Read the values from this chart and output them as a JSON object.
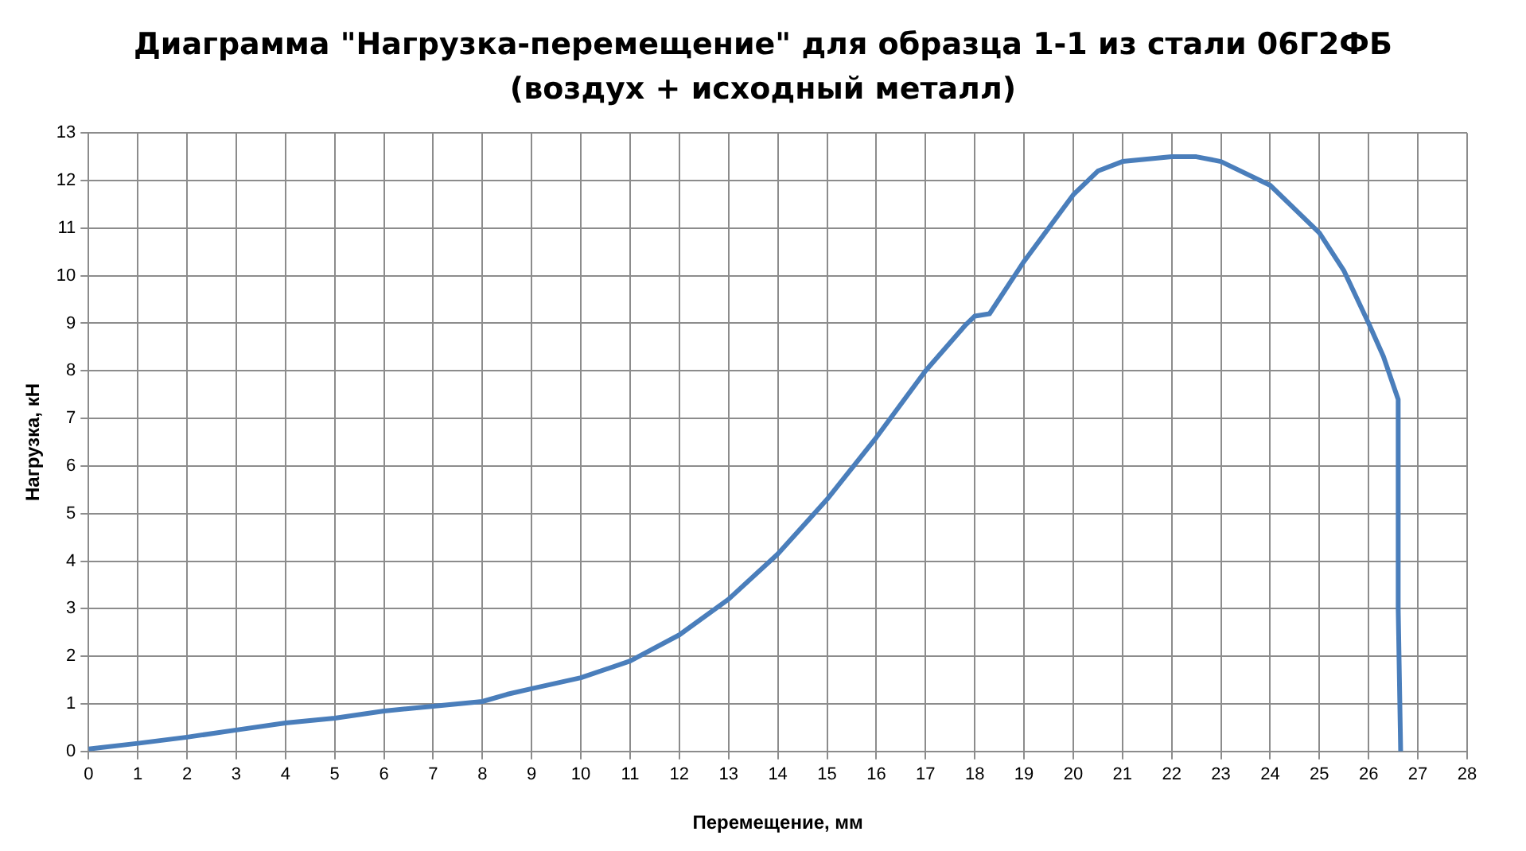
{
  "chart_data": {
    "type": "line",
    "title": "Диаграмма \"Нагрузка-перемещение\" для образца 1-1 из стали 06Г2ФБ\n(воздух + исходный металл)",
    "xlabel": "Перемещение, мм",
    "ylabel": "Нагрузка, кН",
    "x": [
      0,
      1,
      2,
      3,
      4,
      5,
      6,
      7,
      8,
      8.5,
      9,
      10,
      11,
      12,
      13,
      14,
      15,
      16,
      17,
      17.8,
      18,
      18.3,
      19,
      20,
      20.5,
      21,
      22,
      22.5,
      23,
      24,
      25,
      25.5,
      26,
      26.3,
      26.6,
      26.6,
      26.65
    ],
    "series": [
      {
        "color": "#4a7ebb",
        "values": [
          0.05,
          0.17,
          0.3,
          0.45,
          0.6,
          0.7,
          0.85,
          0.95,
          1.05,
          1.2,
          1.32,
          1.55,
          1.9,
          2.45,
          3.2,
          4.15,
          5.3,
          6.6,
          8.0,
          8.95,
          9.15,
          9.2,
          10.3,
          11.7,
          12.2,
          12.4,
          12.5,
          12.5,
          12.4,
          11.9,
          10.9,
          10.1,
          9.0,
          8.3,
          7.4,
          3.0,
          0
        ]
      }
    ],
    "xlim": [
      0,
      28
    ],
    "xticks": [
      0,
      1,
      2,
      3,
      4,
      5,
      6,
      7,
      8,
      9,
      10,
      11,
      12,
      13,
      14,
      15,
      16,
      17,
      18,
      19,
      20,
      21,
      22,
      23,
      24,
      25,
      26,
      27,
      28
    ],
    "ylim": [
      0,
      13
    ],
    "yticks": [
      0,
      1,
      2,
      3,
      4,
      5,
      6,
      7,
      8,
      9,
      10,
      11,
      12,
      13
    ],
    "grid": true,
    "legend": false,
    "marker": "none",
    "line_style": "solid"
  }
}
